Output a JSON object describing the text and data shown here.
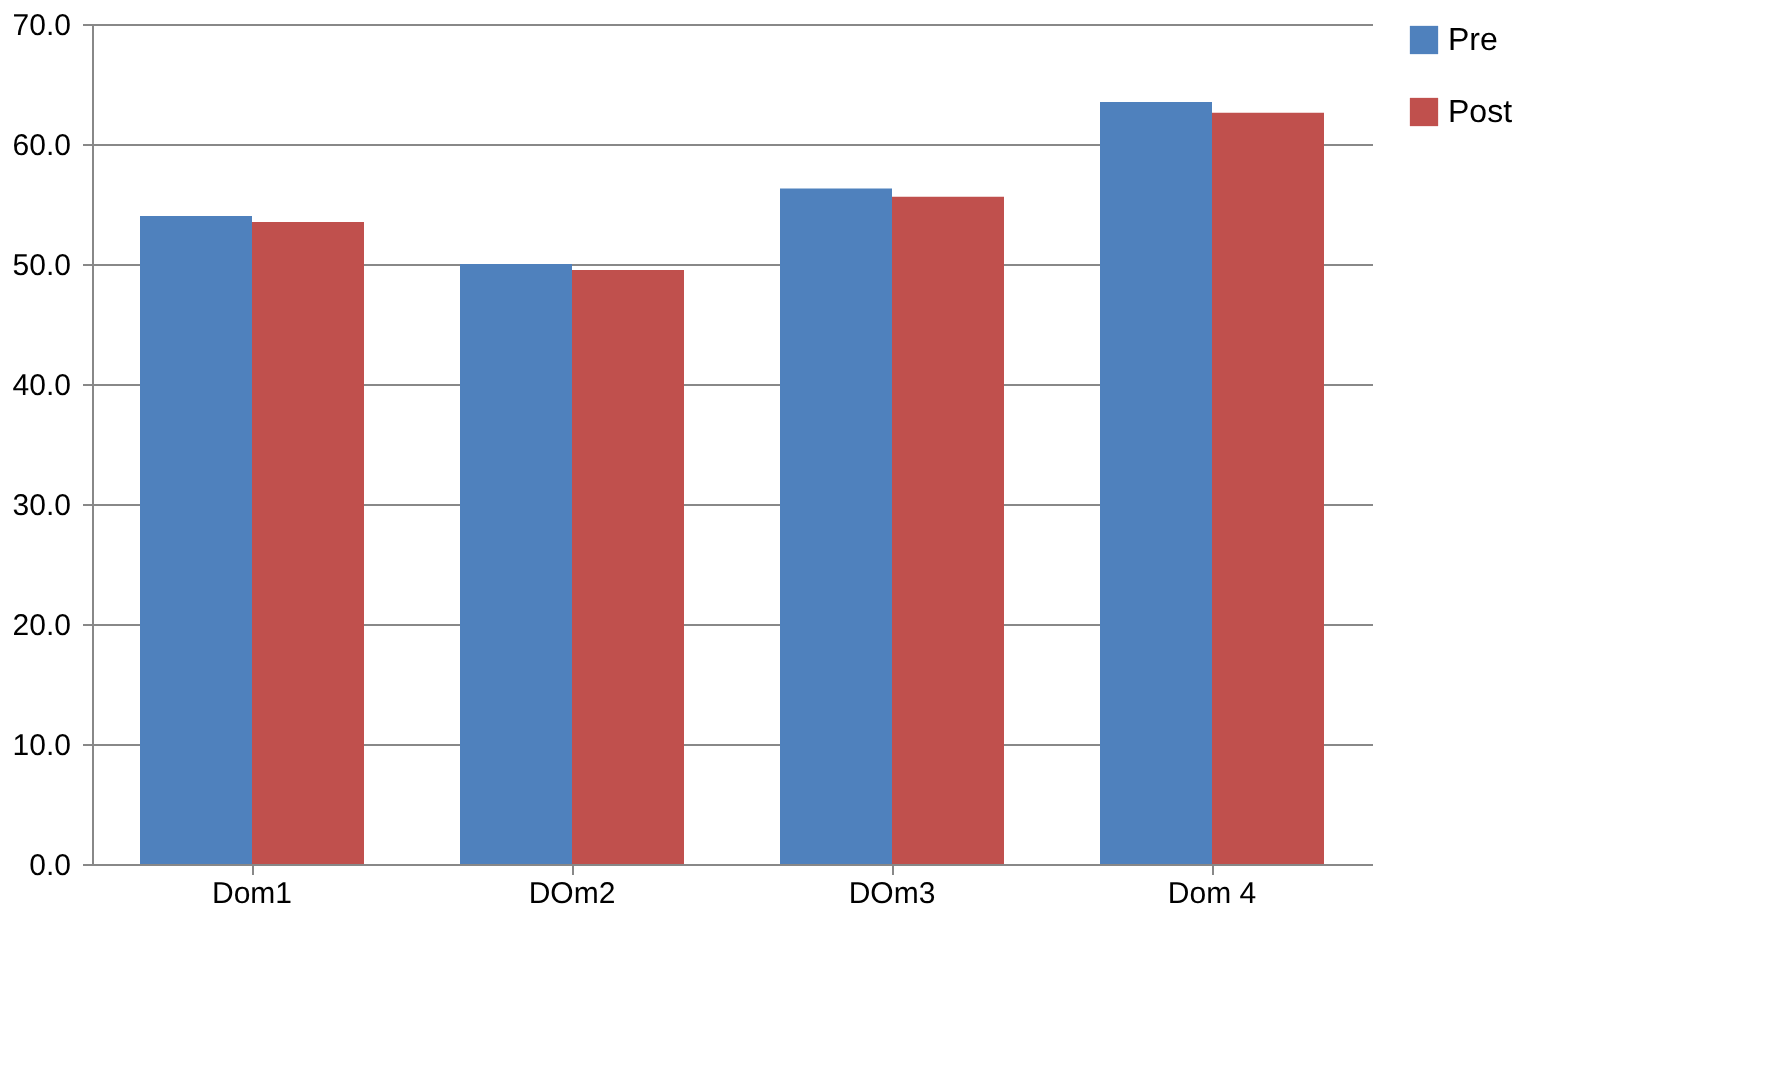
{
  "chart_data": {
    "type": "bar",
    "categories": [
      "Dom1",
      "DOm2",
      "DOm3",
      "Dom 4"
    ],
    "series": [
      {
        "name": "Pre",
        "color": "#4f81bd",
        "values": [
          54.0,
          50.0,
          56.3,
          63.5
        ]
      },
      {
        "name": "Post",
        "color": "#c0504d",
        "values": [
          53.5,
          49.5,
          55.6,
          62.6
        ]
      }
    ],
    "ylim": [
      0,
      70
    ],
    "yticks": [
      {
        "value": 0,
        "label": "0.0"
      },
      {
        "value": 10,
        "label": "10.0"
      },
      {
        "value": 20,
        "label": "20.0"
      },
      {
        "value": 30,
        "label": "30.0"
      },
      {
        "value": 40,
        "label": "40.0"
      },
      {
        "value": 50,
        "label": "50.0"
      },
      {
        "value": 60,
        "label": "60.0"
      },
      {
        "value": 70,
        "label": "70.0"
      }
    ],
    "grid": "y",
    "legend": "right"
  }
}
